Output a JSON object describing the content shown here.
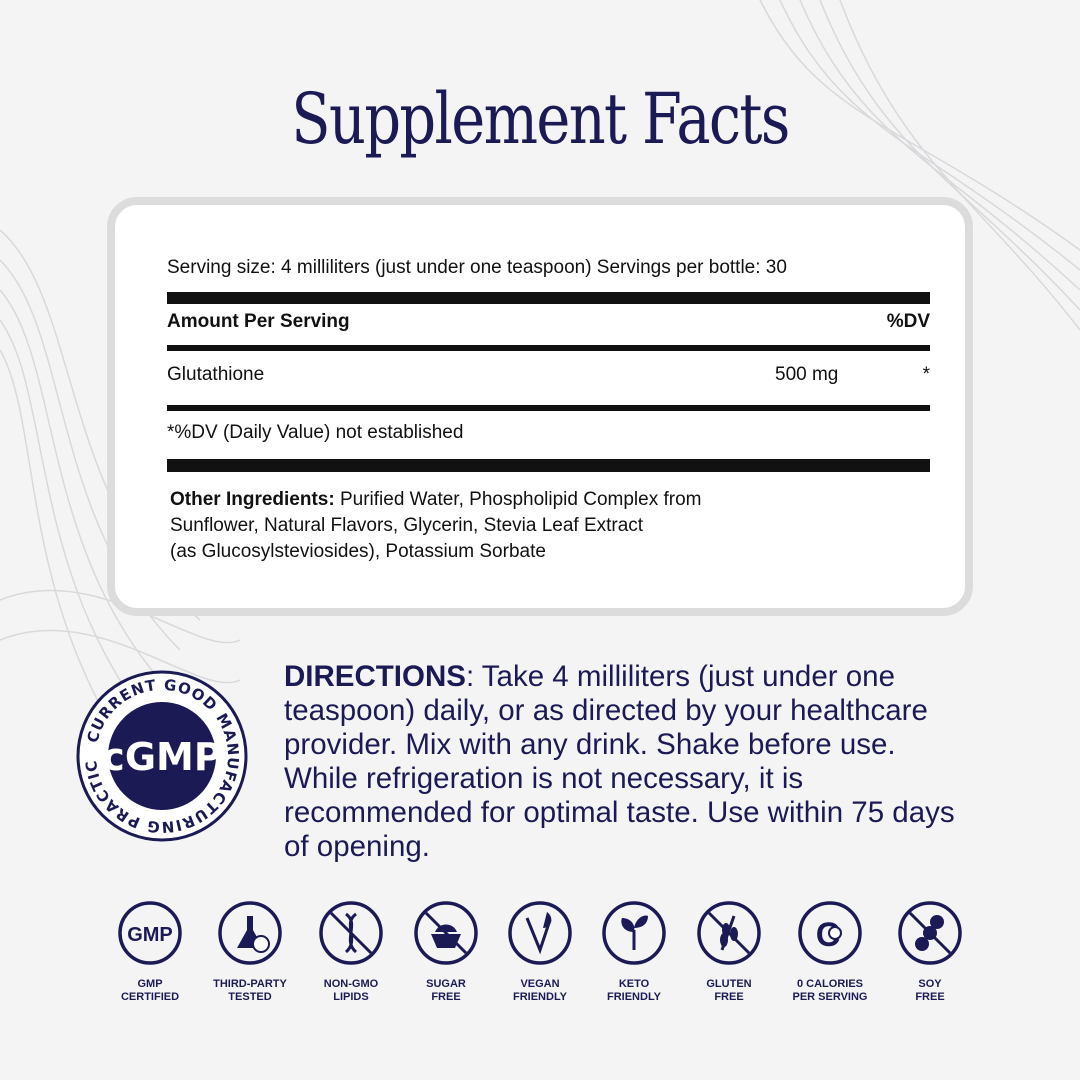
{
  "title": "Supplement Facts",
  "facts": {
    "serving": "Serving size: 4 milliliters (just under one teaspoon) Servings per bottle: 30",
    "amount_header": "Amount Per Serving",
    "dv_header": "%DV",
    "ingredient": "Glutathione",
    "amount": "500 mg",
    "dv": "*",
    "footnote": "*%DV (Daily Value) not established",
    "other_label": "Other Ingredients:",
    "other_lines": [
      " Purified Water, Phospholipid Complex from",
      "Sunflower, Natural Flavors, Glycerin, Stevia Leaf Extract",
      "(as Glucosylsteviosides), Potassium Sorbate"
    ]
  },
  "directions": {
    "label": "DIRECTIONS",
    "text": ": Take 4 milliliters  (just under one teaspoon) daily, or as directed by your healthcare provider. Mix with any drink. Shake before use. While refrigeration is not necessary, it is recommended for optimal taste. Use within 75 days of opening."
  },
  "badge": {
    "center": "cGMP",
    "ring": "CURRENT GOOD MANUFACTURING PRACTICE"
  },
  "colors": {
    "navy": "#1b1a55",
    "panel_border": "#dcdcdc"
  },
  "icons": [
    {
      "icon": "gmp-icon",
      "l1": "GMP",
      "l2": "CERTIFIED"
    },
    {
      "icon": "flask-check-icon",
      "l1": "THIRD-PARTY",
      "l2": "TESTED"
    },
    {
      "icon": "dna-crossed-icon",
      "l1": "NON-GMO",
      "l2": "LIPIDS"
    },
    {
      "icon": "sugar-bowl-crossed-icon",
      "l1": "SUGAR",
      "l2": "FREE"
    },
    {
      "icon": "vegan-leaf-icon",
      "l1": "VEGAN",
      "l2": "FRIENDLY"
    },
    {
      "icon": "sprout-icon",
      "l1": "KETO",
      "l2": "FRIENDLY"
    },
    {
      "icon": "wheat-crossed-icon",
      "l1": "GLUTEN",
      "l2": "FREE"
    },
    {
      "icon": "zero-calorie-icon",
      "l1": "0 CALORIES",
      "l2": "PER SERVING"
    },
    {
      "icon": "soy-crossed-icon",
      "l1": "SOY",
      "l2": "FREE"
    }
  ]
}
